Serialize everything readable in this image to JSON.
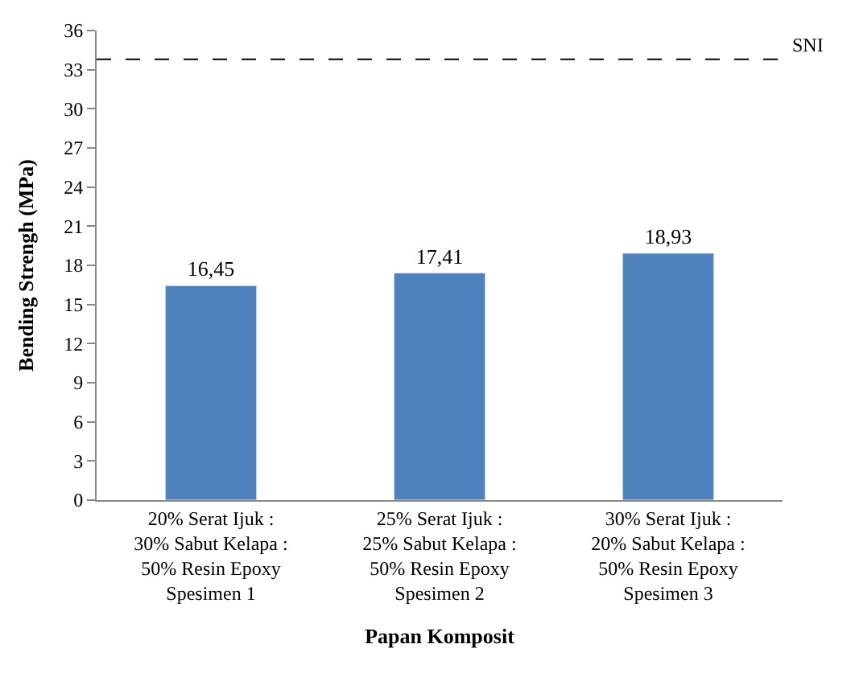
{
  "chart_data": {
    "type": "bar",
    "xlabel": "Papan Komposit",
    "ylabel": "Bending Strengh (MPa)",
    "categories": [
      "20% Serat Ijuk :\n30% Sabut Kelapa :\n50% Resin Epoxy\nSpesimen 1",
      "25% Serat Ijuk :\n25% Sabut Kelapa :\n50% Resin Epoxy\nSpesimen 2",
      "30% Serat Ijuk :\n20% Sabut Kelapa :\n50% Resin Epoxy\nSpesimen 3"
    ],
    "values": [
      16.45,
      17.41,
      18.93
    ],
    "value_labels": [
      "16,45",
      "17,41",
      "18,93"
    ],
    "color": "#4f81bd",
    "ylim": [
      0,
      36
    ],
    "yticks": [
      0,
      3,
      6,
      9,
      12,
      15,
      18,
      21,
      24,
      27,
      30,
      33,
      36
    ],
    "ref_lines": [
      {
        "axis": "y",
        "value": 33.8,
        "label": "SNI",
        "color": "#000000",
        "line_style": "dashed"
      }
    ]
  }
}
